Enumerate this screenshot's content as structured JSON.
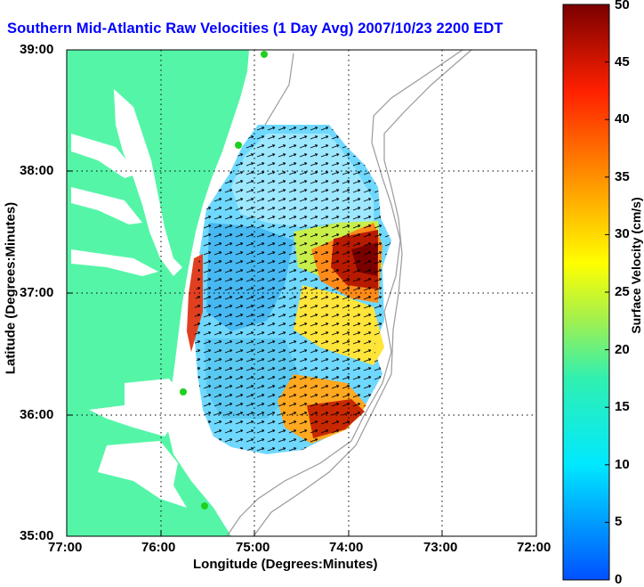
{
  "title": "Southern Mid-Atlantic Raw Velocities (1 Day Avg) 2007/10/23 2200 EDT",
  "xlabel": "Longitude (Degrees:Minutes)",
  "ylabel": "Latitude (Degrees:Minutes)",
  "colorbar": {
    "label": "Surface Velocity (cm/s)",
    "min": 0,
    "max": 50,
    "ticks": [
      "0",
      "5",
      "10",
      "15",
      "20",
      "25",
      "30",
      "35",
      "40",
      "45",
      "50"
    ]
  },
  "x_ticks": [
    "77:00",
    "76:00",
    "75:00",
    "74:00",
    "73:00",
    "72:00"
  ],
  "y_ticks": [
    "39:00",
    "38:00",
    "37:00",
    "36:00",
    "35:00"
  ],
  "colors": {
    "title": "#0000ff",
    "land": "#55f5a8",
    "frame": "#000000",
    "contour": "#9a9a9a"
  },
  "map_extent": {
    "lon_min": -77,
    "lon_max": -72,
    "lat_min": 35,
    "lat_max": 39
  },
  "grid": true
}
